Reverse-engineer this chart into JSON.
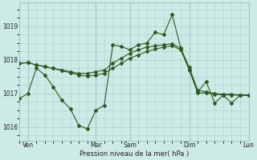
{
  "background_color": "#cceae6",
  "grid_color": "#aad4ce",
  "line_color": "#2d5a1e",
  "xlabel": "Pression niveau de la mer( hPa )",
  "ylim": [
    1015.6,
    1019.7
  ],
  "yticks": [
    1016,
    1017,
    1018,
    1019
  ],
  "xlim": [
    0,
    27
  ],
  "day_labels": [
    "Ven",
    "",
    "Mar",
    "Sam",
    "",
    "Dim",
    "",
    "Lun"
  ],
  "day_positions": [
    1,
    5,
    9,
    13,
    17,
    20,
    24,
    27
  ],
  "vline_positions": [
    1,
    9,
    13,
    20,
    27
  ],
  "series1_x": [
    0,
    1,
    2,
    3,
    4,
    5,
    6,
    7,
    8,
    9,
    10,
    11,
    12,
    13,
    14,
    15,
    16,
    17,
    18,
    19,
    20,
    21,
    22,
    23,
    24,
    25,
    26,
    27
  ],
  "series1_y": [
    1016.85,
    1017.0,
    1017.75,
    1017.55,
    1017.2,
    1016.8,
    1016.55,
    1016.05,
    1015.95,
    1016.5,
    1016.65,
    1018.45,
    1018.4,
    1018.3,
    1018.45,
    1018.5,
    1018.82,
    1018.75,
    1019.35,
    1018.35,
    1017.7,
    1017.05,
    1017.35,
    1016.72,
    1016.95,
    1016.72,
    1016.95,
    1016.95
  ],
  "series2_x": [
    0,
    1,
    2,
    3,
    4,
    5,
    6,
    7,
    8,
    9,
    10,
    11,
    12,
    13,
    14,
    15,
    16,
    17,
    18,
    19,
    20,
    21,
    22,
    23,
    24,
    25,
    26,
    27
  ],
  "series2_y": [
    1017.9,
    1017.92,
    1017.85,
    1017.8,
    1017.75,
    1017.7,
    1017.65,
    1017.6,
    1017.6,
    1017.65,
    1017.7,
    1017.9,
    1018.05,
    1018.2,
    1018.3,
    1018.38,
    1018.42,
    1018.45,
    1018.48,
    1018.35,
    1017.78,
    1017.1,
    1017.05,
    1017.0,
    1016.98,
    1016.98,
    1016.95,
    1016.95
  ],
  "series3_x": [
    0,
    1,
    2,
    3,
    4,
    5,
    6,
    7,
    8,
    9,
    10,
    11,
    12,
    13,
    14,
    15,
    16,
    17,
    18,
    19,
    20,
    21,
    22,
    23,
    24,
    25,
    26,
    27
  ],
  "series3_y": [
    1017.9,
    1017.92,
    1017.85,
    1017.8,
    1017.75,
    1017.68,
    1017.62,
    1017.55,
    1017.52,
    1017.55,
    1017.6,
    1017.75,
    1017.9,
    1018.05,
    1018.15,
    1018.25,
    1018.32,
    1018.38,
    1018.42,
    1018.3,
    1017.72,
    1017.02,
    1017.02,
    1016.98,
    1016.96,
    1016.96,
    1016.95,
    1016.95
  ]
}
